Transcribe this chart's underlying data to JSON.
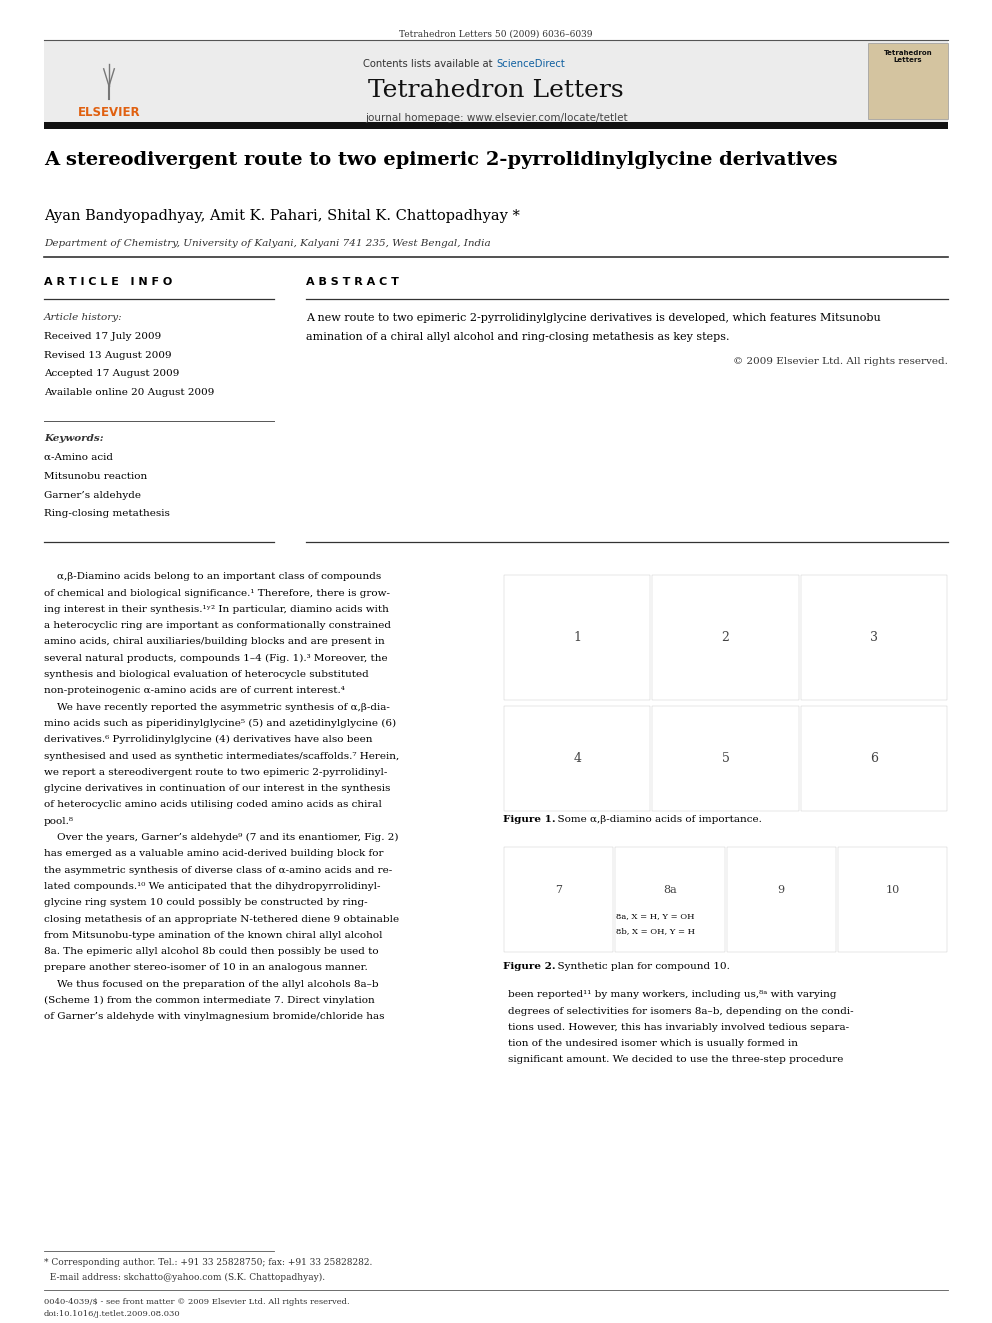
{
  "page_width": 9.92,
  "page_height": 13.23,
  "bg": "#ffffff",
  "top_cite": "Tetrahedron Letters 50 (2009) 6036–6039",
  "journal_name": "Tetrahedron Letters",
  "homepage": "journal homepage: www.elsevier.com/locate/tetlet",
  "elsevier_color": "#e06010",
  "sd_color": "#1060a0",
  "header_bg": "#ececec",
  "article_title": "A stereodivergent route to two epimeric 2-pyrrolidinylglycine derivatives",
  "authors": "Ayan Bandyopadhyay, Amit K. Pahari, Shital K. Chattopadhyay *",
  "affiliation": "Department of Chemistry, University of Kalyani, Kalyani 741 235, West Bengal, India",
  "art_info_lbl": "A R T I C L E   I N F O",
  "abstract_lbl": "A B S T R A C T",
  "art_history_lbl": "Article history:",
  "history": [
    "Received 17 July 2009",
    "Revised 13 August 2009",
    "Accepted 17 August 2009",
    "Available online 20 August 2009"
  ],
  "kw_lbl": "Keywords:",
  "keywords": [
    "α-Amino acid",
    "Mitsunobu reaction",
    "Garner’s aldehyde",
    "Ring-closing metathesis"
  ],
  "abstract_line1": "A new route to two epimeric 2-pyrrolidinylglycine derivatives is developed, which features Mitsunobu",
  "abstract_line2": "amination of a chiral allyl alcohol and ring-closing metathesis as key steps.",
  "abstract_copy": "© 2009 Elsevier Ltd. All rights reserved.",
  "body1": [
    "    α,β-Diamino acids belong to an important class of compounds",
    "of chemical and biological significance.¹ Therefore, there is grow-",
    "ing interest in their synthesis.¹ʸ² In particular, diamino acids with",
    "a heterocyclic ring are important as conformationally constrained",
    "amino acids, chiral auxiliaries/building blocks and are present in",
    "several natural products, compounds 1–4 (Fig. 1).³ Moreover, the",
    "synthesis and biological evaluation of heterocycle substituted",
    "non-proteinogenic α-amino acids are of current interest.⁴",
    "    We have recently reported the asymmetric synthesis of α,β-dia-",
    "mino acids such as piperidinylglycine⁵ (5) and azetidinylglycine (6)",
    "derivatives.⁶ Pyrrolidinylglycine (4) derivatives have also been",
    "synthesised and used as synthetic intermediates/scaffolds.⁷ Herein,",
    "we report a stereodivergent route to two epimeric 2-pyrrolidinyl-",
    "glycine derivatives in continuation of our interest in the synthesis",
    "of heterocyclic amino acids utilising coded amino acids as chiral",
    "pool.⁸",
    "    Over the years, Garner’s aldehyde⁹ (7 and its enantiomer, Fig. 2)",
    "has emerged as a valuable amino acid-derived building block for",
    "the asymmetric synthesis of diverse class of α-amino acids and re-",
    "lated compounds.¹⁰ We anticipated that the dihydropyrrolidinyl-",
    "glycine ring system 10 could possibly be constructed by ring-",
    "closing metathesis of an appropriate N-tethered diene 9 obtainable",
    "from Mitsunobu-type amination of the known chiral allyl alcohol",
    "8a. The epimeric allyl alcohol 8b could then possibly be used to",
    "prepare another stereo-isomer of 10 in an analogous manner.",
    "    We thus focused on the preparation of the allyl alcohols 8a–b",
    "(Scheme 1) from the common intermediate 7. Direct vinylation",
    "of Garner’s aldehyde with vinylmagnesium bromide/chloride has"
  ],
  "body2": [
    "been reported¹¹ by many workers, including us,⁸ᵃ with varying",
    "degrees of selectivities for isomers 8a–b, depending on the condi-",
    "tions used. However, this has invariably involved tedious separa-",
    "tion of the undesired isomer which is usually formed in",
    "significant amount. We decided to use the three-step procedure"
  ],
  "fig1_cap_bold": "Figure 1.",
  "fig1_cap_rest": "  Some α,β-diamino acids of importance.",
  "fig2_cap_bold": "Figure 2.",
  "fig2_cap_rest": "  Synthetic plan for compound 10.",
  "footnote1": "* Corresponding author. Tel.: +91 33 25828750; fax: +91 33 25828282.",
  "footnote2": "  E-mail address: skchatto@yahoo.com (S.K. Chattopadhyay).",
  "footer1": "0040-4039/$ - see front matter © 2009 Elsevier Ltd. All rights reserved.",
  "footer2": "doi:10.1016/j.tetlet.2009.08.030"
}
